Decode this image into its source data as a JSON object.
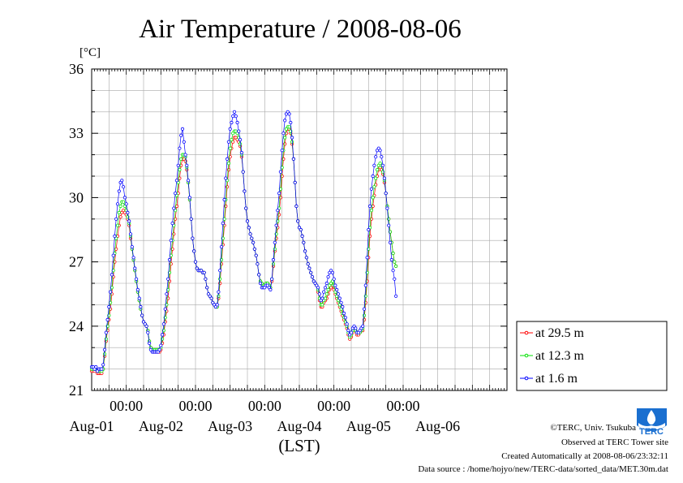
{
  "chart_data": {
    "type": "line",
    "title": "Air Temperature / 2008-08-06",
    "ylabel": "[°C]",
    "xlabel": "(LST)",
    "ylim": [
      21,
      36
    ],
    "yticks": [
      21,
      24,
      27,
      30,
      33,
      36
    ],
    "xlim": [
      0,
      144
    ],
    "xtick_hours": [
      12,
      36,
      60,
      84,
      108
    ],
    "xtick_label": "00:00",
    "day_labels": [
      "Aug-01",
      "Aug-02",
      "Aug-03",
      "Aug-04",
      "Aug-05",
      "Aug-06"
    ],
    "grid": true,
    "legend_position": "right",
    "interval_hours": 0.5,
    "series": [
      {
        "name": "at 29.5 m",
        "color": "#ff0000",
        "values": [
          21.9,
          21.9,
          21.9,
          22.0,
          21.8,
          21.8,
          21.8,
          21.8,
          22.0,
          22.6,
          23.3,
          23.8,
          24.3,
          24.8,
          25.5,
          26.3,
          27.0,
          27.6,
          28.2,
          28.7,
          29.1,
          29.3,
          29.4,
          29.3,
          29.2,
          29.0,
          28.7,
          28.1,
          27.6,
          27.1,
          26.6,
          26.1,
          25.6,
          25.2,
          24.8,
          24.5,
          24.2,
          24.1,
          24.0,
          23.8,
          23.3,
          23.0,
          22.9,
          22.8,
          22.8,
          22.8,
          22.8,
          22.8,
          22.9,
          23.2,
          23.6,
          24.2,
          24.7,
          25.3,
          26.1,
          26.9,
          27.6,
          28.3,
          29.0,
          29.6,
          30.2,
          30.9,
          31.5,
          31.8,
          31.8,
          31.7,
          31.3,
          30.7,
          29.9,
          29.0,
          28.1,
          27.5,
          27.0,
          26.7,
          26.6,
          26.6,
          26.6,
          26.5,
          26.5,
          26.2,
          25.8,
          25.5,
          25.4,
          25.3,
          25.1,
          25.0,
          24.9,
          24.9,
          25.3,
          26.0,
          26.9,
          27.8,
          28.7,
          29.6,
          30.5,
          31.3,
          31.9,
          32.3,
          32.6,
          32.8,
          32.8,
          32.7,
          32.6,
          32.4,
          31.9,
          31.2,
          30.3,
          29.5,
          28.9,
          28.6,
          28.3,
          28.1,
          27.9,
          27.6,
          27.3,
          26.9,
          26.4,
          26.1,
          26.0,
          25.9,
          25.9,
          26.0,
          26.0,
          25.9,
          25.8,
          26.1,
          26.8,
          27.5,
          28.1,
          28.6,
          29.2,
          30.0,
          31.0,
          31.8,
          32.5,
          33.0,
          33.2,
          33.2,
          33.0,
          32.5,
          31.8,
          30.7,
          29.6,
          28.9,
          28.6,
          28.5,
          28.2,
          27.9,
          27.5,
          27.2,
          26.9,
          26.7,
          26.5,
          26.3,
          26.1,
          26.0,
          25.9,
          25.6,
          25.2,
          24.9,
          24.9,
          25.1,
          25.2,
          25.3,
          25.5,
          25.7,
          25.8,
          25.9,
          25.7,
          25.5,
          25.3,
          25.1,
          24.9,
          24.7,
          24.5,
          24.3,
          24.1,
          23.9,
          23.6,
          23.4,
          23.5,
          23.7,
          23.9,
          23.8,
          23.6,
          23.6,
          23.7,
          23.8,
          23.8,
          24.3,
          25.1,
          26.1,
          27.2,
          28.2,
          29.0,
          29.6,
          30.1,
          30.6,
          31.0,
          31.3,
          31.4,
          31.3,
          31.1,
          30.7,
          30.2,
          29.6,
          29.0,
          28.4,
          27.9,
          27.4,
          27.0,
          26.8
        ]
      },
      {
        "name": "at 12.3 m",
        "color": "#00e000",
        "values": [
          22.0,
          22.0,
          22.0,
          22.0,
          21.9,
          21.9,
          21.9,
          21.9,
          22.0,
          22.7,
          23.4,
          24.0,
          24.5,
          25.1,
          25.8,
          26.6,
          27.4,
          28.1,
          28.7,
          29.3,
          29.6,
          29.8,
          29.8,
          29.6,
          29.4,
          29.1,
          28.8,
          28.2,
          27.6,
          27.1,
          26.6,
          26.1,
          25.6,
          25.2,
          24.8,
          24.5,
          24.2,
          24.1,
          24.0,
          23.8,
          23.3,
          23.0,
          22.9,
          22.9,
          22.9,
          22.9,
          22.9,
          22.9,
          23.0,
          23.4,
          23.8,
          24.4,
          25.0,
          25.7,
          26.5,
          27.3,
          28.0,
          28.7,
          29.4,
          30.1,
          30.7,
          31.3,
          31.8,
          32.0,
          32.0,
          31.9,
          31.4,
          30.7,
          29.9,
          29.0,
          28.1,
          27.5,
          27.0,
          26.7,
          26.6,
          26.6,
          26.6,
          26.5,
          26.5,
          26.2,
          25.8,
          25.5,
          25.4,
          25.3,
          25.1,
          25.0,
          24.9,
          24.9,
          25.4,
          26.2,
          27.1,
          28.1,
          29.0,
          29.9,
          30.8,
          31.6,
          32.3,
          32.7,
          33.0,
          33.1,
          33.1,
          33.0,
          32.8,
          32.5,
          32.0,
          31.2,
          30.3,
          29.5,
          28.9,
          28.6,
          28.3,
          28.1,
          27.9,
          27.6,
          27.3,
          26.9,
          26.4,
          26.1,
          26.0,
          25.9,
          25.9,
          26.0,
          26.0,
          25.9,
          25.8,
          26.2,
          26.9,
          27.6,
          28.3,
          28.9,
          29.5,
          30.4,
          31.4,
          32.2,
          32.8,
          33.2,
          33.3,
          33.3,
          33.1,
          32.6,
          31.8,
          30.7,
          29.6,
          28.9,
          28.6,
          28.5,
          28.2,
          27.9,
          27.5,
          27.2,
          26.9,
          26.7,
          26.5,
          26.3,
          26.1,
          26.0,
          25.9,
          25.7,
          25.3,
          25.0,
          25.0,
          25.2,
          25.3,
          25.5,
          25.7,
          25.9,
          26.0,
          26.1,
          25.9,
          25.6,
          25.4,
          25.2,
          25.0,
          24.8,
          24.6,
          24.4,
          24.2,
          24.0,
          23.7,
          23.5,
          23.6,
          23.8,
          23.9,
          23.8,
          23.7,
          23.7,
          23.7,
          23.8,
          23.9,
          24.5,
          25.4,
          26.5,
          27.6,
          28.6,
          29.4,
          30.0,
          30.5,
          30.9,
          31.3,
          31.5,
          31.6,
          31.5,
          31.2,
          30.8,
          30.2,
          29.6,
          29.0,
          28.4,
          27.9,
          27.4,
          27.0,
          26.8
        ]
      },
      {
        "name": "at 1.6 m",
        "color": "#0000ff",
        "values": [
          22.1,
          22.1,
          22.0,
          22.1,
          21.9,
          22.0,
          22.0,
          22.0,
          22.2,
          22.9,
          23.7,
          24.3,
          24.9,
          25.6,
          26.4,
          27.3,
          28.2,
          29.0,
          29.7,
          30.3,
          30.7,
          30.8,
          30.5,
          30.0,
          29.7,
          29.3,
          28.9,
          28.3,
          27.7,
          27.2,
          26.7,
          26.2,
          25.7,
          25.3,
          24.9,
          24.5,
          24.2,
          24.1,
          24.0,
          23.7,
          23.2,
          22.9,
          22.8,
          22.8,
          22.8,
          22.8,
          22.8,
          22.9,
          23.1,
          23.6,
          24.1,
          24.8,
          25.5,
          26.2,
          27.1,
          28.0,
          28.8,
          29.5,
          30.2,
          30.8,
          31.5,
          32.3,
          32.9,
          33.2,
          32.6,
          32.0,
          31.5,
          30.8,
          30.0,
          29.0,
          28.1,
          27.5,
          27.0,
          26.7,
          26.6,
          26.6,
          26.6,
          26.5,
          26.5,
          26.2,
          25.8,
          25.5,
          25.4,
          25.3,
          25.1,
          25.0,
          24.9,
          25.0,
          25.6,
          26.6,
          27.7,
          28.8,
          29.9,
          30.9,
          31.8,
          32.6,
          33.2,
          33.5,
          33.8,
          34.0,
          33.8,
          33.5,
          33.1,
          32.7,
          32.1,
          31.2,
          30.3,
          29.5,
          28.9,
          28.6,
          28.3,
          28.1,
          27.9,
          27.6,
          27.3,
          26.9,
          26.4,
          26.0,
          25.8,
          25.8,
          25.8,
          25.9,
          25.9,
          25.8,
          25.7,
          26.2,
          27.1,
          27.9,
          28.7,
          29.4,
          30.2,
          31.2,
          32.2,
          33.0,
          33.6,
          33.9,
          34.0,
          33.9,
          33.5,
          32.8,
          31.8,
          30.7,
          29.6,
          28.9,
          28.6,
          28.5,
          28.2,
          27.9,
          27.5,
          27.2,
          26.9,
          26.7,
          26.5,
          26.3,
          26.1,
          26.0,
          25.9,
          25.8,
          25.5,
          25.2,
          25.3,
          25.6,
          25.8,
          26.0,
          26.3,
          26.5,
          26.6,
          26.5,
          26.2,
          25.9,
          25.7,
          25.5,
          25.3,
          25.1,
          24.9,
          24.6,
          24.4,
          24.1,
          23.8,
          23.6,
          23.7,
          23.9,
          24.0,
          23.9,
          23.7,
          23.7,
          23.8,
          23.9,
          24.0,
          24.8,
          25.9,
          27.2,
          28.5,
          29.6,
          30.4,
          31.0,
          31.5,
          31.9,
          32.2,
          32.3,
          32.2,
          31.9,
          31.5,
          30.9,
          30.2,
          29.5,
          28.7,
          27.9,
          27.1,
          26.6,
          26.2,
          25.4
        ]
      }
    ]
  },
  "legend": {
    "items": [
      "at 29.5 m",
      "at 12.3 m",
      "at 1.6 m"
    ]
  },
  "credits": {
    "copyright": "©TERC, Univ. Tsukuba",
    "observed": "Observed at TERC Tower site",
    "created": "Created Automatically at 2008-08-06/23:32:11",
    "source": "Data source : /home/hojyo/new/TERC-data/sorted_data/MET.30m.dat",
    "logo_text": "TERC"
  }
}
